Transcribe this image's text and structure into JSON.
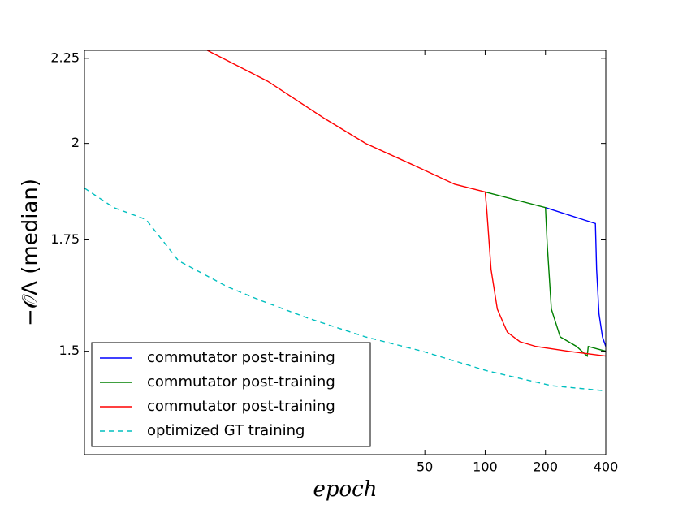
{
  "chart_data": {
    "type": "line",
    "x_label": "epoch",
    "y_label": "−𝒪Λ (median)",
    "xscale": "log",
    "yscale": "log",
    "xlim": [
      1,
      400
    ],
    "ylim": [
      1.3,
      2.275
    ],
    "xticks": [
      50,
      100,
      200,
      400
    ],
    "yticks": [
      1.5,
      1.75,
      2,
      2.25
    ],
    "legend": "lower left",
    "series": [
      {
        "name": "commutator post-training",
        "color": "#0000ff",
        "style": "solid",
        "x": [
          200,
          355,
          360,
          370,
          385,
          400
        ],
        "values": [
          1.83,
          1.79,
          1.68,
          1.58,
          1.53,
          1.51
        ]
      },
      {
        "name": "commutator post-training",
        "color": "#008000",
        "style": "solid",
        "x": [
          100,
          200,
          204,
          214,
          237,
          286,
          323,
          327,
          400
        ],
        "values": [
          1.87,
          1.83,
          1.74,
          1.59,
          1.53,
          1.51,
          1.49,
          1.51,
          1.5
        ]
      },
      {
        "name": "commutator post-training",
        "color": "#ff0000",
        "style": "solid",
        "x": [
          4.1,
          8.2,
          15.8,
          25.3,
          44.2,
          70.5,
          100,
          102,
          107,
          115,
          129,
          149,
          179,
          260,
          400
        ],
        "values": [
          2.275,
          2.18,
          2.07,
          2.0,
          1.94,
          1.89,
          1.87,
          1.82,
          1.68,
          1.59,
          1.54,
          1.52,
          1.51,
          1.5,
          1.49
        ]
      },
      {
        "name": "optimized GT training",
        "color": "#00bfbf",
        "style": "dashed",
        "x": [
          1,
          1.4,
          2.03,
          2.95,
          3.9,
          5.17,
          7.5,
          13.1,
          25.3,
          48.6,
          102,
          215,
          400
        ],
        "values": [
          1.88,
          1.83,
          1.8,
          1.7,
          1.67,
          1.64,
          1.61,
          1.57,
          1.53,
          1.5,
          1.46,
          1.43,
          1.42
        ]
      }
    ]
  }
}
